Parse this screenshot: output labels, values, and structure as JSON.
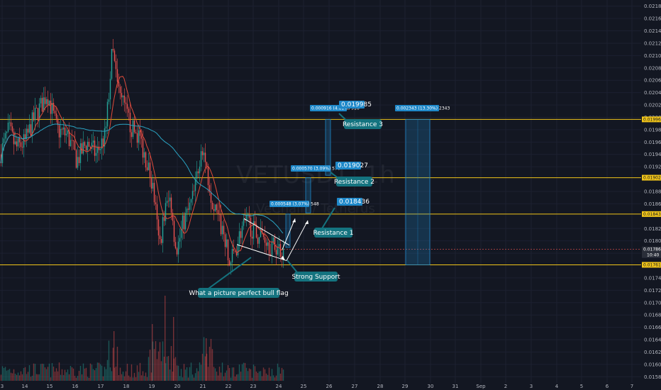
{
  "chart_data": {
    "type": "candlestick",
    "symbol": "VETUSDT, 1h",
    "subtitle": "VeChain / Tetherus",
    "colors": {
      "background": "#131722",
      "up": "#26a69a",
      "down": "#ef5350",
      "ma_fast": "#e04b3a",
      "ma_slow": "#2aa3c2",
      "level": "#f0c419",
      "annotation": "#1e88c9",
      "callout": "#14737f"
    },
    "y_ticks": [
      "0.021800",
      "0.021600",
      "0.021400",
      "0.021200",
      "0.021000",
      "0.020800",
      "0.020600",
      "0.020400",
      "0.020200",
      "0.020000",
      "0.019800",
      "0.019600",
      "0.019400",
      "0.019200",
      "0.018800",
      "0.018600",
      "0.018200",
      "0.018000",
      "0.017800",
      "0.017400",
      "0.017200",
      "0.017000",
      "0.016800",
      "0.016600",
      "0.016400",
      "0.016200",
      "0.016000",
      "0.015800"
    ],
    "y_range": [
      0.0157,
      0.0219
    ],
    "x_ticks": [
      "3",
      "14",
      "15",
      "16",
      "17",
      "18",
      "19",
      "20",
      "21",
      "22",
      "23",
      "24",
      "25",
      "26",
      "27",
      "28",
      "29",
      "30",
      "31",
      "Sep",
      "2",
      "3",
      "4",
      "5",
      "6",
      "7"
    ],
    "levels": [
      {
        "value": 0.019967,
        "label": "0.019967"
      },
      {
        "value": 0.019023,
        "label": "0.019023"
      },
      {
        "value": 0.018434,
        "label": "0.018434"
      },
      {
        "value": 0.017612,
        "label": "0.017612"
      }
    ],
    "last_price": {
      "value": 0.017862,
      "label": "0.017862",
      "countdown": "10:40"
    },
    "measure_tags": [
      {
        "label": "0.000548 (3.07%) 548"
      },
      {
        "label": "0.000570 (3.09%) 570"
      },
      {
        "label": "0.000916 (4.81%) 916"
      },
      {
        "label": "0.002343 (13.30%) 2343"
      }
    ],
    "target_tags": [
      {
        "label": "0.018436"
      },
      {
        "label": "0.019027"
      },
      {
        "label": "0.019985"
      }
    ],
    "callouts": [
      {
        "text": "Resistance 1"
      },
      {
        "text": "Resistance 2"
      },
      {
        "text": "Resistance 3"
      },
      {
        "text": "Strong Support"
      },
      {
        "text": "What a picture perfect bull flag"
      }
    ]
  }
}
